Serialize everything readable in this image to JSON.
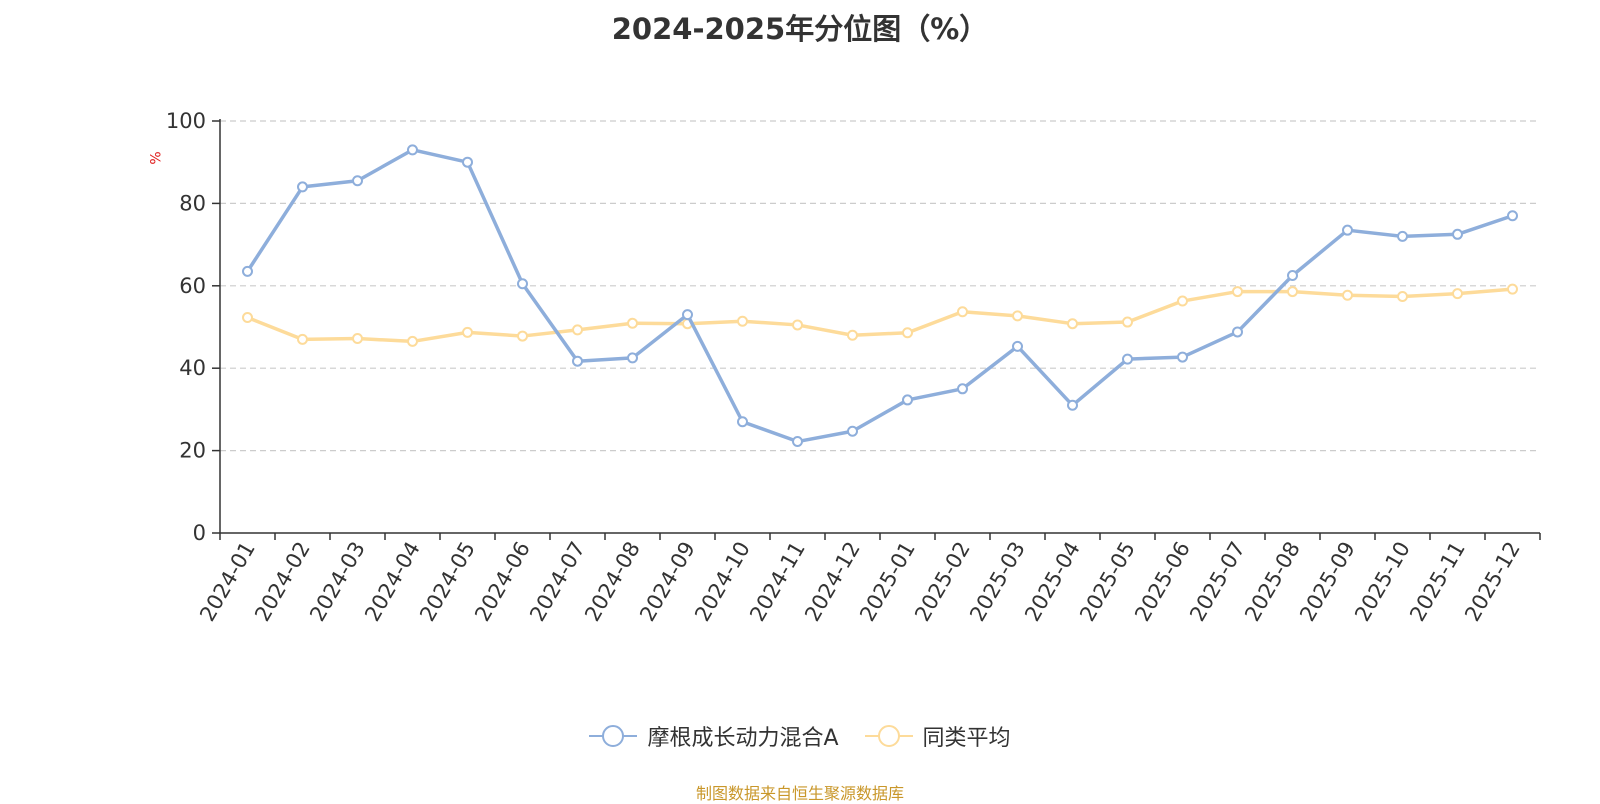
{
  "chart_data": {
    "type": "line",
    "title": "2024-2025年分位图（%）",
    "ylabel": "%",
    "xlabel": "",
    "ylim": [
      0,
      100
    ],
    "yticks": [
      0,
      20,
      40,
      60,
      80,
      100
    ],
    "grid": "horizontal dashed",
    "legend_position": "bottom",
    "categories": [
      "2024-01",
      "2024-02",
      "2024-03",
      "2024-04",
      "2024-05",
      "2024-06",
      "2024-07",
      "2024-08",
      "2024-09",
      "2024-10",
      "2024-11",
      "2024-12",
      "2025-01",
      "2025-02",
      "2025-03",
      "2025-04",
      "2025-05",
      "2025-06",
      "2025-07",
      "2025-08",
      "2025-09",
      "2025-10",
      "2025-11",
      "2025-12"
    ],
    "series": [
      {
        "name": "摩根成长动力混合A",
        "color": "#8eaedb",
        "values": [
          63.5,
          84,
          85.5,
          93,
          90,
          60.5,
          41.7,
          42.5,
          53,
          27,
          22.2,
          24.7,
          32.3,
          35,
          45.3,
          31,
          42.2,
          42.7,
          48.8,
          62.5,
          73.5,
          72,
          72.5,
          77
        ]
      },
      {
        "name": "同类平均",
        "color": "#fddb9a",
        "values": [
          52.3,
          47,
          47.2,
          46.5,
          48.7,
          47.8,
          49.3,
          50.9,
          50.8,
          51.4,
          50.5,
          48,
          48.6,
          53.7,
          52.7,
          50.8,
          51.2,
          56.3,
          58.6,
          58.6,
          57.7,
          57.4,
          58.1,
          59.2
        ]
      }
    ]
  },
  "footer": "制图数据来自恒生聚源数据库"
}
